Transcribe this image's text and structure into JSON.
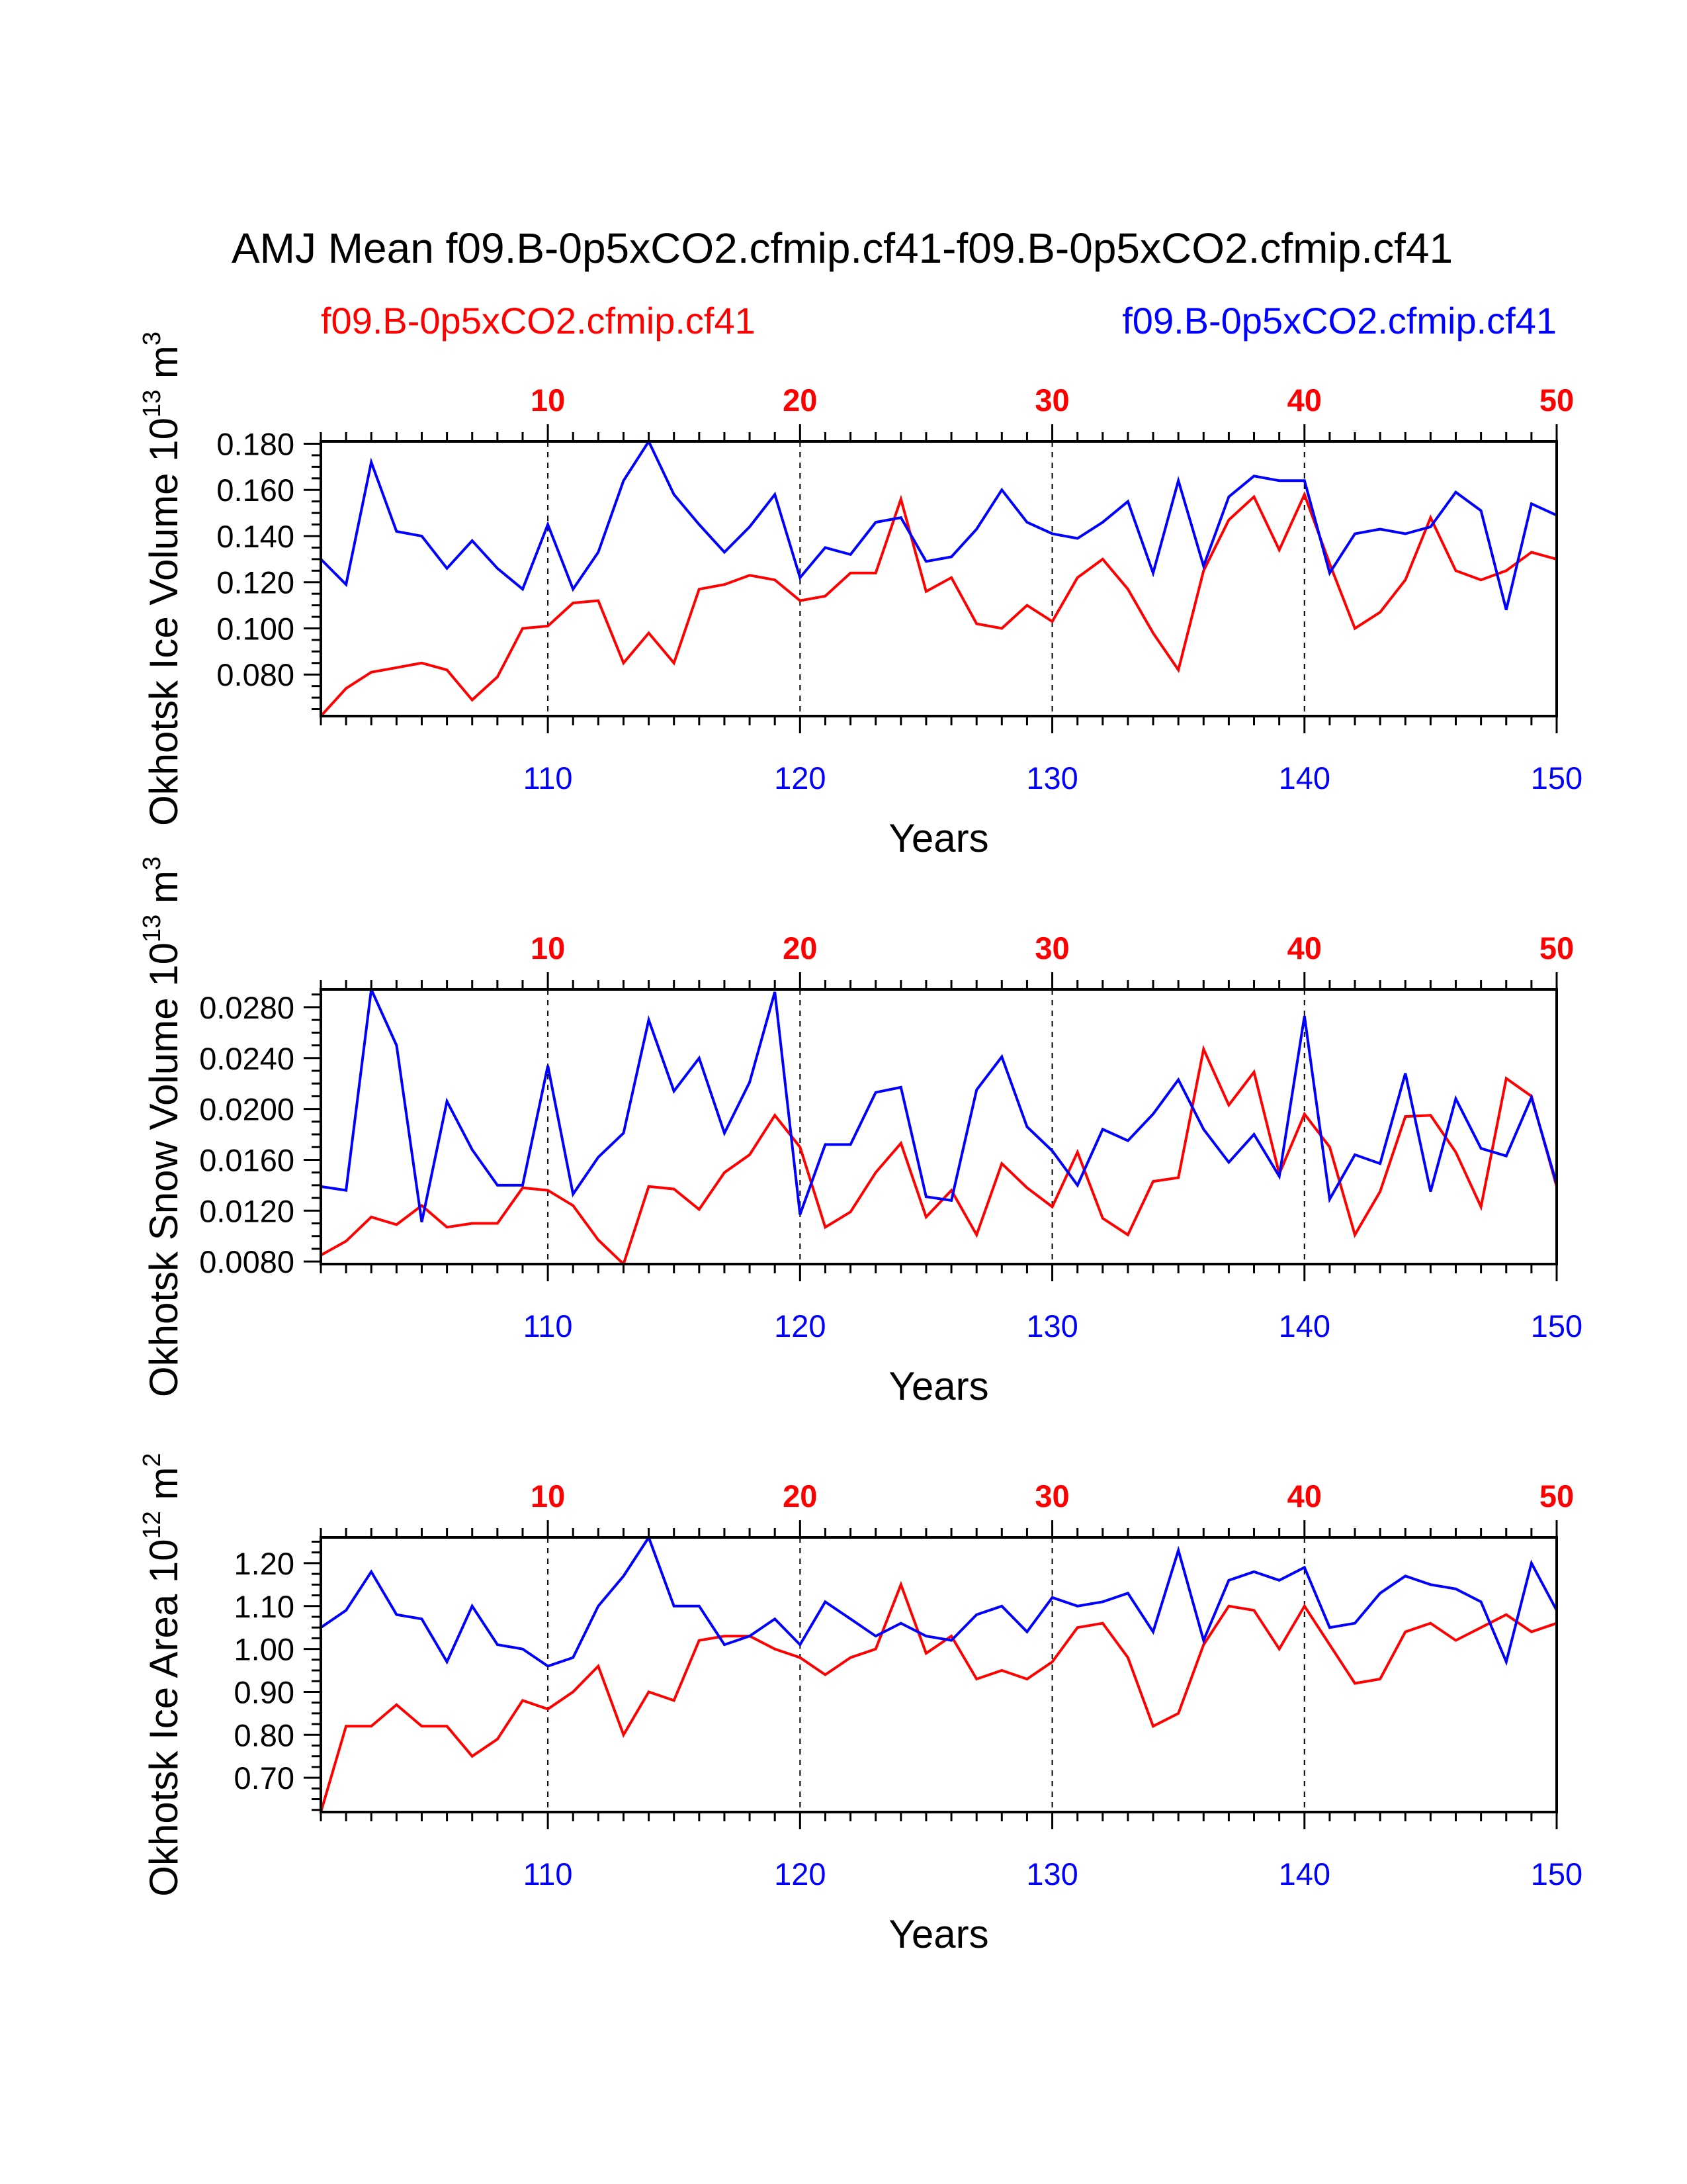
{
  "title": "AMJ Mean f09.B-0p5xCO2.cfmip.cf41-f09.B-0p5xCO2.cfmip.cf41",
  "legend": {
    "left_label": "f09.B-0p5xCO2.cfmip.cf41",
    "right_label": "f09.B-0p5xCO2.cfmip.cf41",
    "left_color": "#ff0000",
    "right_color": "#0000ff"
  },
  "chart_data": [
    {
      "type": "line",
      "id": "ice-volume",
      "ylabel": "Okhotsk Ice Volume 10",
      "ylabel_exp": "13",
      "ylabel_unit": " m",
      "ylabel_unit_exp": "3",
      "xlabel": "Years",
      "ylim": [
        0.062,
        0.181
      ],
      "yticks": [
        "0.080",
        "0.100",
        "0.120",
        "0.140",
        "0.160",
        "0.180"
      ],
      "top_ticks": [
        "10",
        "20",
        "30",
        "40",
        "50"
      ],
      "bottom_ticks": [
        "110",
        "120",
        "130",
        "140",
        "150"
      ],
      "series": [
        {
          "name": "f09.B-0p5xCO2.cfmip.cf41 (years 1-50)",
          "color": "#ff0000",
          "values": [
            0.062,
            0.074,
            0.081,
            0.083,
            0.085,
            0.082,
            0.069,
            0.079,
            0.1,
            0.101,
            0.111,
            0.112,
            0.085,
            0.098,
            0.085,
            0.117,
            0.119,
            0.123,
            0.121,
            0.112,
            0.114,
            0.124,
            0.124,
            0.156,
            0.116,
            0.122,
            0.102,
            0.1,
            0.11,
            0.103,
            0.122,
            0.13,
            0.117,
            0.098,
            0.082,
            0.125,
            0.147,
            0.157,
            0.134,
            0.158,
            0.128,
            0.1,
            0.107,
            0.121,
            0.148,
            0.125,
            0.121,
            0.125,
            0.133,
            0.13
          ]
        },
        {
          "name": "f09.B-0p5xCO2.cfmip.cf41 (years 101-150)",
          "color": "#0000ff",
          "values": [
            0.13,
            0.119,
            0.172,
            0.142,
            0.14,
            0.126,
            0.138,
            0.126,
            0.117,
            0.145,
            0.117,
            0.133,
            0.164,
            0.181,
            0.158,
            0.145,
            0.133,
            0.144,
            0.158,
            0.122,
            0.135,
            0.132,
            0.146,
            0.148,
            0.129,
            0.131,
            0.143,
            0.16,
            0.146,
            0.141,
            0.139,
            0.146,
            0.155,
            0.124,
            0.164,
            0.127,
            0.157,
            0.166,
            0.164,
            0.164,
            0.124,
            0.141,
            0.143,
            0.141,
            0.144,
            0.159,
            0.151,
            0.108,
            0.154,
            0.149
          ]
        }
      ]
    },
    {
      "type": "line",
      "id": "snow-volume",
      "ylabel": "Okhotsk Snow Volume 10",
      "ylabel_exp": "13",
      "ylabel_unit": " m",
      "ylabel_unit_exp": "3",
      "xlabel": "Years",
      "ylim": [
        0.0078,
        0.0294
      ],
      "yticks": [
        "0.0080",
        "0.0120",
        "0.0160",
        "0.0200",
        "0.0240",
        "0.0280"
      ],
      "top_ticks": [
        "10",
        "20",
        "30",
        "40",
        "50"
      ],
      "bottom_ticks": [
        "110",
        "120",
        "130",
        "140",
        "150"
      ],
      "series": [
        {
          "name": "f09.B-0p5xCO2.cfmip.cf41 (years 1-50)",
          "color": "#ff0000",
          "values": [
            0.0085,
            0.0096,
            0.0115,
            0.0109,
            0.0124,
            0.0107,
            0.011,
            0.011,
            0.0138,
            0.0136,
            0.0124,
            0.0097,
            0.0078,
            0.0139,
            0.0137,
            0.0121,
            0.015,
            0.0164,
            0.0195,
            0.017,
            0.0107,
            0.0119,
            0.015,
            0.0173,
            0.0115,
            0.0136,
            0.0101,
            0.0157,
            0.0138,
            0.0123,
            0.0166,
            0.0114,
            0.0101,
            0.0143,
            0.0146,
            0.0247,
            0.0203,
            0.0229,
            0.0149,
            0.0196,
            0.017,
            0.0101,
            0.0135,
            0.0194,
            0.0195,
            0.0166,
            0.0123,
            0.0224,
            0.021,
            0.0139
          ]
        },
        {
          "name": "f09.B-0p5xCO2.cfmip.cf41 (years 101-150)",
          "color": "#0000ff",
          "values": [
            0.0139,
            0.0136,
            0.0294,
            0.025,
            0.0111,
            0.0206,
            0.0168,
            0.014,
            0.014,
            0.0234,
            0.0133,
            0.0162,
            0.0181,
            0.027,
            0.0214,
            0.024,
            0.0181,
            0.0221,
            0.0292,
            0.0117,
            0.0172,
            0.0172,
            0.0213,
            0.0217,
            0.0131,
            0.0128,
            0.0215,
            0.0241,
            0.0186,
            0.0167,
            0.014,
            0.0184,
            0.0175,
            0.0196,
            0.0223,
            0.0184,
            0.0158,
            0.018,
            0.0147,
            0.0273,
            0.0129,
            0.0164,
            0.0157,
            0.0228,
            0.0135,
            0.0208,
            0.0169,
            0.0163,
            0.0209,
            0.0141
          ]
        }
      ]
    },
    {
      "type": "line",
      "id": "ice-area",
      "ylabel": "Okhotsk Ice Area 10",
      "ylabel_exp": "12",
      "ylabel_unit": " m",
      "ylabel_unit_exp": "2",
      "xlabel": "Years",
      "ylim": [
        0.62,
        1.26
      ],
      "yticks": [
        "0.70",
        "0.80",
        "0.90",
        "1.00",
        "1.10",
        "1.20"
      ],
      "top_ticks": [
        "10",
        "20",
        "30",
        "40",
        "50"
      ],
      "bottom_ticks": [
        "110",
        "120",
        "130",
        "140",
        "150"
      ],
      "series": [
        {
          "name": "f09.B-0p5xCO2.cfmip.cf41 (years 1-50)",
          "color": "#ff0000",
          "values": [
            0.62,
            0.82,
            0.82,
            0.87,
            0.82,
            0.82,
            0.75,
            0.79,
            0.88,
            0.86,
            0.9,
            0.96,
            0.8,
            0.9,
            0.88,
            1.02,
            1.03,
            1.03,
            1.0,
            0.98,
            0.94,
            0.98,
            1.0,
            1.15,
            0.99,
            1.03,
            0.93,
            0.95,
            0.93,
            0.97,
            1.05,
            1.06,
            0.98,
            0.82,
            0.85,
            1.01,
            1.1,
            1.09,
            1.0,
            1.1,
            1.01,
            0.92,
            0.93,
            1.04,
            1.06,
            1.02,
            1.05,
            1.08,
            1.04,
            1.06
          ]
        },
        {
          "name": "f09.B-0p5xCO2.cfmip.cf41 (years 101-150)",
          "color": "#0000ff",
          "values": [
            1.05,
            1.09,
            1.18,
            1.08,
            1.07,
            0.97,
            1.1,
            1.01,
            1.0,
            0.96,
            0.98,
            1.1,
            1.17,
            1.26,
            1.1,
            1.1,
            1.01,
            1.03,
            1.07,
            1.01,
            1.11,
            1.07,
            1.03,
            1.06,
            1.03,
            1.02,
            1.08,
            1.1,
            1.04,
            1.12,
            1.1,
            1.11,
            1.13,
            1.04,
            1.23,
            1.02,
            1.16,
            1.18,
            1.16,
            1.19,
            1.05,
            1.06,
            1.13,
            1.17,
            1.15,
            1.14,
            1.11,
            0.97,
            1.2,
            1.09
          ]
        }
      ]
    }
  ]
}
